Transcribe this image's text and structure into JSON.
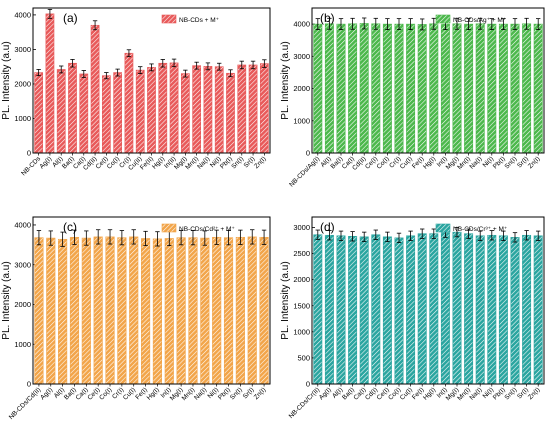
{
  "chart_data": [
    {
      "type": "bar",
      "panel_label": "(a)",
      "legend": "NB-CDs + M⁺",
      "legend_position": "top-right",
      "ylabel": "PL. Intensity (a.u)",
      "ylim": [
        0,
        4200
      ],
      "yticks": [
        "0",
        "1000",
        "2000",
        "3000",
        "4000"
      ],
      "color": "#e85a5a",
      "categories": [
        "NB-CDs",
        "Ag(I)",
        "Al(I)",
        "Ba(I)",
        "Ca(I)",
        "Cd(II)",
        "Ce(I)",
        "Co(I)",
        "Cr(I)",
        "Cu(II)",
        "Fe(II)",
        "Hg(I)",
        "In(II)",
        "Mg(I)",
        "Mn(I)",
        "Na(I)",
        "Ni(I)",
        "Pb(I)",
        "Sn(I)",
        "Sr(I)",
        "Zn(I)"
      ],
      "values": [
        2330,
        4030,
        2420,
        2600,
        2290,
        3700,
        2240,
        2330,
        2890,
        2400,
        2480,
        2600,
        2610,
        2300,
        2530,
        2510,
        2500,
        2310,
        2550,
        2550,
        2590
      ],
      "errors": [
        90,
        130,
        100,
        110,
        100,
        130,
        90,
        100,
        100,
        100,
        100,
        110,
        110,
        100,
        100,
        100,
        100,
        100,
        110,
        110,
        110
      ]
    },
    {
      "type": "bar",
      "panel_label": "(b)",
      "legend": "NB-CDs/Ag⁺ + M⁺",
      "legend_position": "top-right",
      "ylabel": "PL. Intensity (a.u)",
      "ylim": [
        0,
        4500
      ],
      "yticks": [
        "0",
        "1000",
        "2000",
        "3000",
        "4000"
      ],
      "color": "#4cb84c",
      "categories": [
        "NB-CDs/Ag(I)",
        "Al(I)",
        "Ba(I)",
        "Ca(I)",
        "Cd(II)",
        "Ce(I)",
        "Co(I)",
        "Cr(I)",
        "Cu(I)",
        "Fe(I)",
        "Hg(I)",
        "In(I)",
        "Mg(I)",
        "Mn(I)",
        "Na(I)",
        "Ni(I)",
        "Pb(I)",
        "Sn(I)",
        "Sr(I)",
        "Zn(I)"
      ],
      "values": [
        4000,
        4010,
        4000,
        4010,
        4020,
        4010,
        4000,
        4000,
        4000,
        3990,
        4010,
        4000,
        4010,
        4000,
        4010,
        4000,
        4000,
        4000,
        4010,
        4000
      ],
      "errors": [
        170,
        170,
        170,
        170,
        170,
        170,
        170,
        170,
        170,
        170,
        170,
        170,
        170,
        170,
        170,
        170,
        170,
        170,
        170,
        170
      ]
    },
    {
      "type": "bar",
      "panel_label": "(c)",
      "legend": "NB-CDs/Cd²⁺ + M⁺",
      "legend_position": "top-right",
      "ylabel": "PL. Intensity (a.u)",
      "ylim": [
        0,
        4200
      ],
      "yticks": [
        "0",
        "1000",
        "2000",
        "3000",
        "4000"
      ],
      "color": "#f2a54a",
      "categories": [
        "NB-CDs/Cd(II)",
        "Ag(I)",
        "Al(I)",
        "Ba(I)",
        "Ca(I)",
        "Ce(I)",
        "Co(I)",
        "Cr(I)",
        "Cu(I)",
        "Fe(I)",
        "Hg(I)",
        "In(I)",
        "Mg(I)",
        "Mn(I)",
        "Na(I)",
        "Ni(I)",
        "Pb(I)",
        "Sn(I)",
        "Sr(I)",
        "Zn(I)"
      ],
      "values": [
        3680,
        3670,
        3640,
        3690,
        3670,
        3700,
        3700,
        3680,
        3700,
        3660,
        3650,
        3660,
        3680,
        3680,
        3670,
        3690,
        3680,
        3690,
        3700,
        3690
      ],
      "errors": [
        180,
        180,
        180,
        180,
        180,
        180,
        180,
        180,
        180,
        180,
        180,
        180,
        180,
        180,
        180,
        180,
        180,
        180,
        180,
        180
      ]
    },
    {
      "type": "bar",
      "panel_label": "(d)",
      "legend": "NB-CDs/Cr³⁺ + M⁺",
      "legend_position": "top-right",
      "ylabel": "PL. Intensity (a.u)",
      "ylim": [
        0,
        3200
      ],
      "yticks": [
        "0",
        "500",
        "1000",
        "1500",
        "2000",
        "2500",
        "3000"
      ],
      "color": "#2aa5a0",
      "categories": [
        "NB-CDs/Cr(II)",
        "Ag(I)",
        "Al(I)",
        "Ba(I)",
        "Ca(I)",
        "Cd(I)",
        "Ce(I)",
        "Co(I)",
        "Cu(I)",
        "Fe(I)",
        "Hg(I)",
        "In(I)",
        "Mg(I)",
        "Mn(I)",
        "Na(I)",
        "Ni(I)",
        "Pb(I)",
        "Sn(I)",
        "Sr(I)",
        "Zn(I)"
      ],
      "values": [
        2860,
        2850,
        2840,
        2830,
        2820,
        2860,
        2820,
        2800,
        2840,
        2880,
        2880,
        2900,
        2910,
        2880,
        2840,
        2850,
        2840,
        2810,
        2850,
        2840
      ],
      "errors": [
        90,
        90,
        90,
        90,
        90,
        90,
        90,
        90,
        90,
        90,
        90,
        90,
        90,
        90,
        90,
        90,
        90,
        90,
        90,
        90
      ]
    }
  ]
}
